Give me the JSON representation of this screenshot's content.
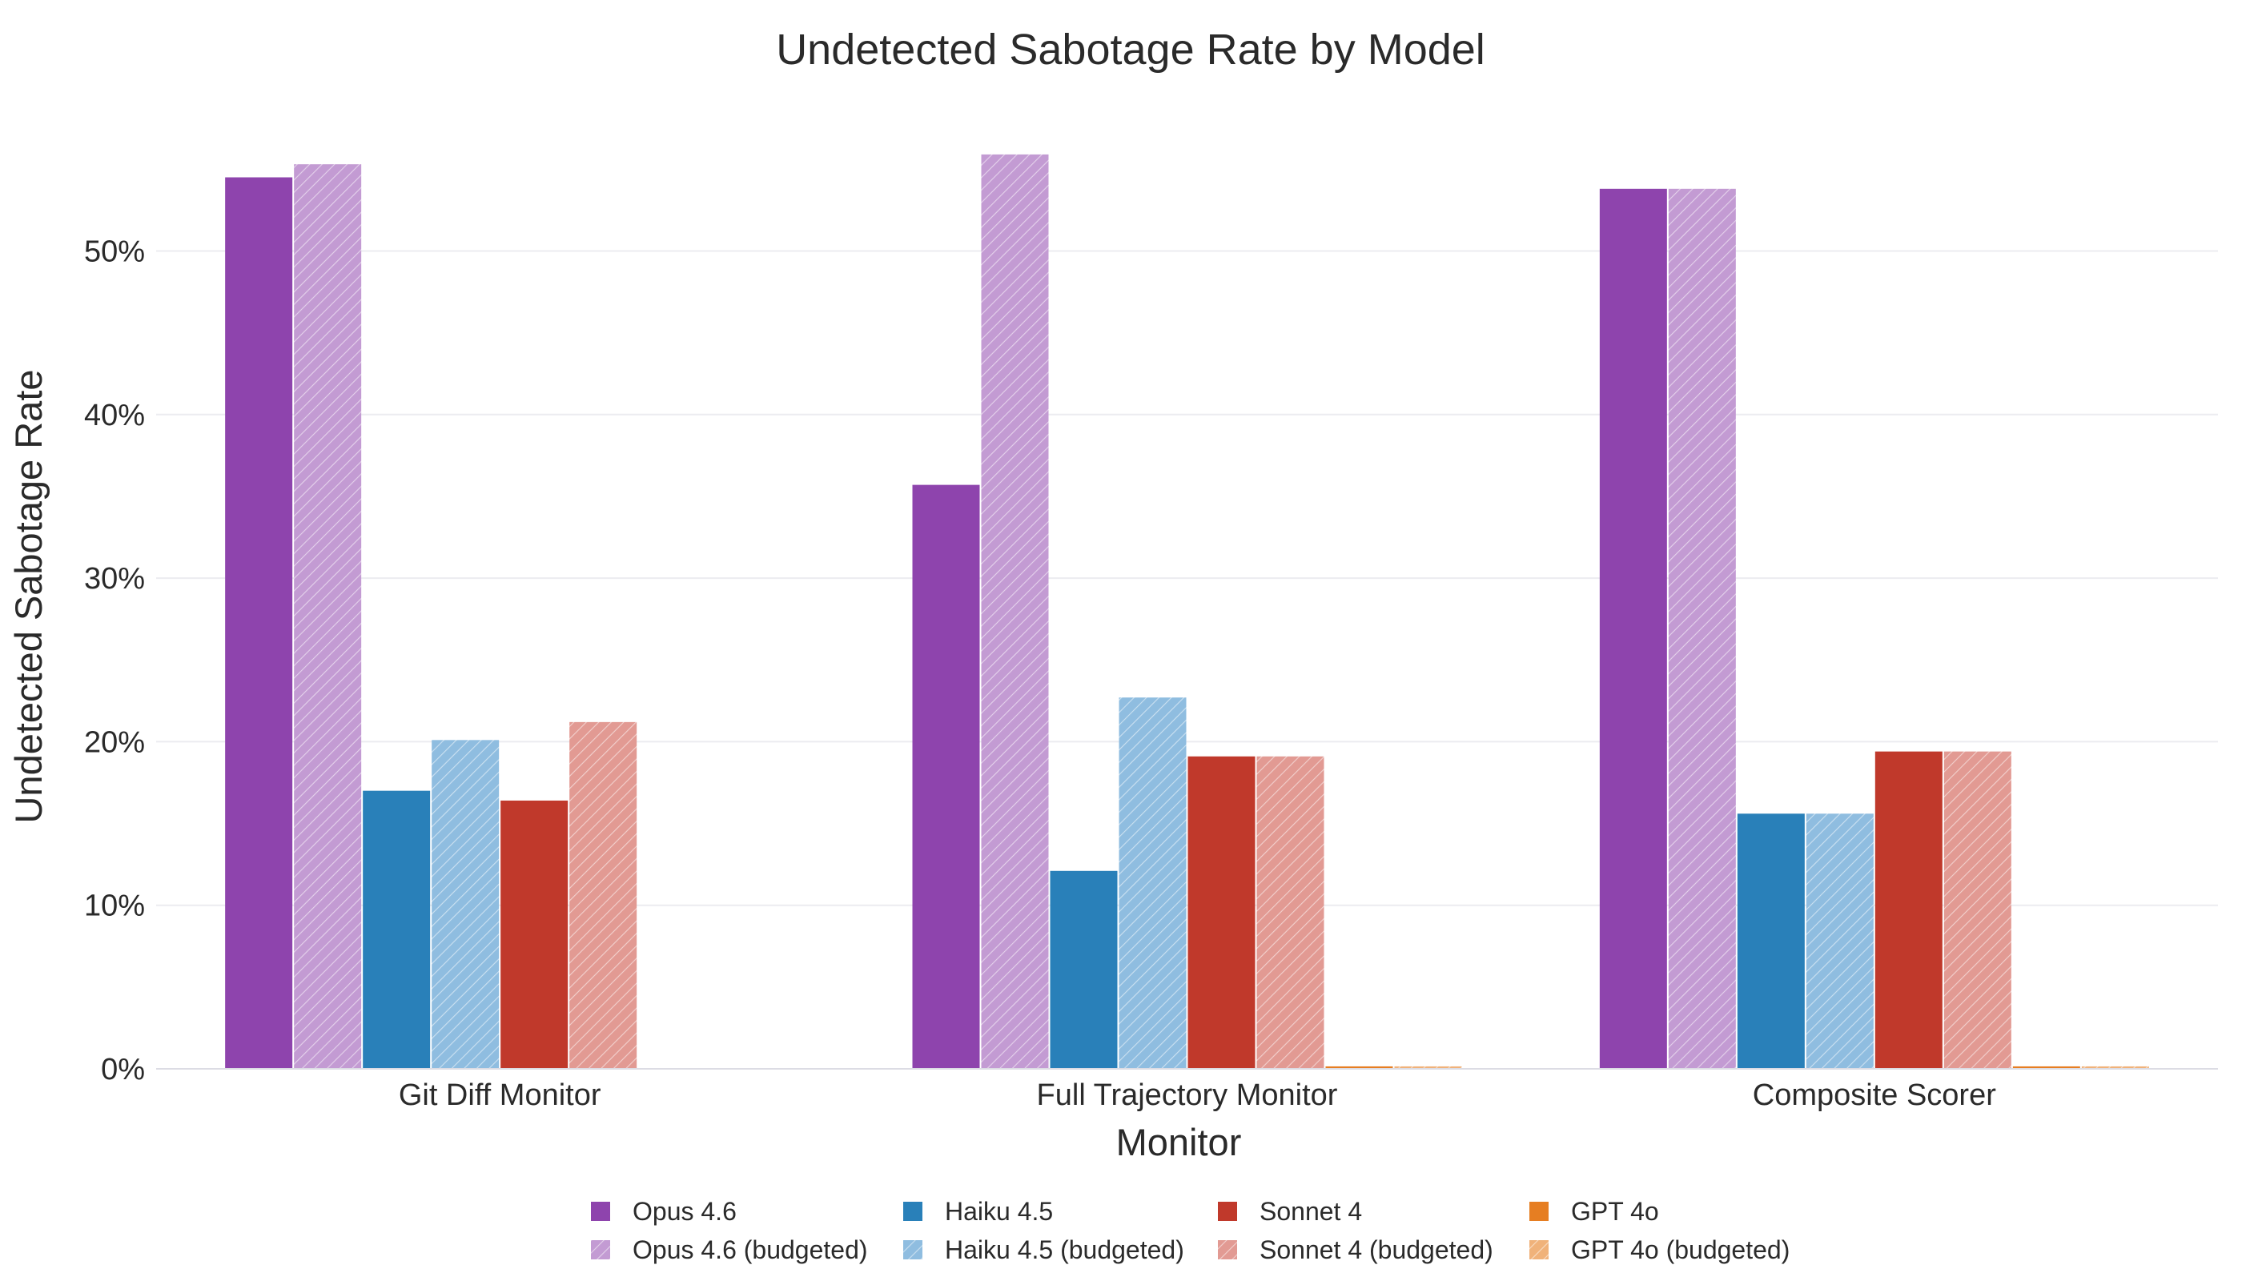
{
  "chart_data": {
    "type": "bar",
    "title": "Undetected Sabotage Rate by Model",
    "xlabel": "Monitor",
    "ylabel": "Undetected Sabotage Rate",
    "categories": [
      "Git Diff Monitor",
      "Full Trajectory Monitor",
      "Composite Scorer"
    ],
    "ylim": [
      0,
      58
    ],
    "yticks": [
      0,
      10,
      20,
      30,
      40,
      50
    ],
    "ytick_labels": [
      "0%",
      "10%",
      "20%",
      "30%",
      "40%",
      "50%"
    ],
    "grid": true,
    "legend_position": "bottom-center",
    "series": [
      {
        "name": "Opus 4.6",
        "color": "#8e44ad",
        "hatched": false,
        "values": [
          54.5,
          35.7,
          53.8
        ]
      },
      {
        "name": "Opus 4.6 (budgeted)",
        "color": "#c39bd3",
        "hatched": true,
        "values": [
          55.3,
          55.9,
          53.8
        ]
      },
      {
        "name": "Haiku 4.5",
        "color": "#2980b9",
        "hatched": false,
        "values": [
          17.0,
          12.1,
          15.6
        ]
      },
      {
        "name": "Haiku 4.5 (budgeted)",
        "color": "#8fbde0",
        "hatched": true,
        "values": [
          20.1,
          22.7,
          15.6
        ]
      },
      {
        "name": "Sonnet 4",
        "color": "#c0392b",
        "hatched": false,
        "values": [
          16.4,
          19.1,
          19.4
        ]
      },
      {
        "name": "Sonnet 4 (budgeted)",
        "color": "#e29a93",
        "hatched": true,
        "values": [
          21.2,
          19.1,
          19.4
        ]
      },
      {
        "name": "GPT 4o",
        "color": "#e67e22",
        "hatched": false,
        "values": [
          0,
          0.15,
          0.15
        ]
      },
      {
        "name": "GPT 4o (budgeted)",
        "color": "#f0b27a",
        "hatched": true,
        "values": [
          0,
          0.15,
          0.15
        ]
      }
    ]
  }
}
